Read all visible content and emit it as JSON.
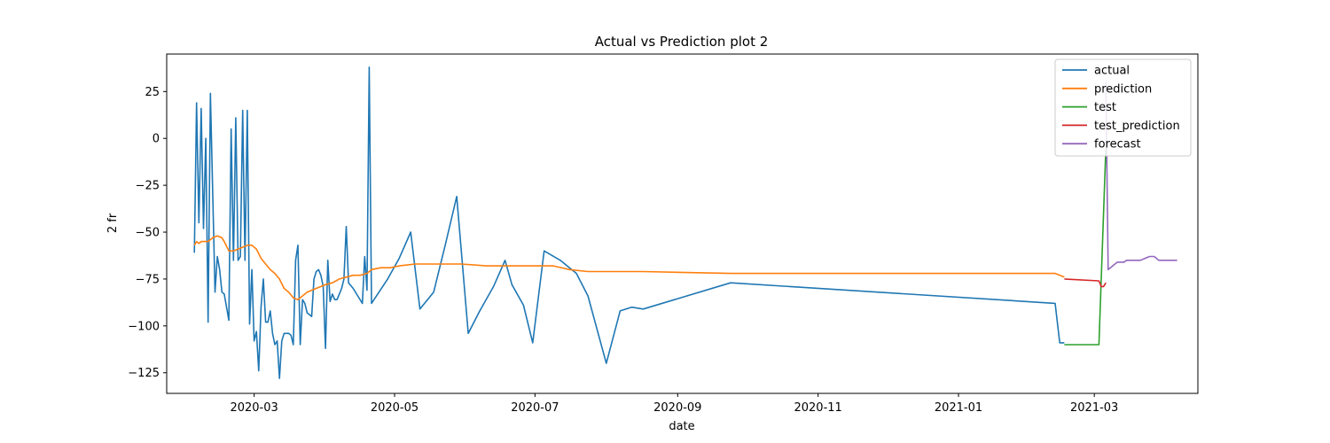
{
  "chart_data": {
    "type": "line",
    "title": "Actual vs Prediction plot 2",
    "xlabel": "date",
    "ylabel": "2 fr",
    "x_range": [
      "2020-01-23",
      "2021-04-15"
    ],
    "ylim": [
      -136,
      45
    ],
    "x_ticks": [
      {
        "date": "2020-03-01",
        "label": "2020-03"
      },
      {
        "date": "2020-05-01",
        "label": "2020-05"
      },
      {
        "date": "2020-07-01",
        "label": "2020-07"
      },
      {
        "date": "2020-09-01",
        "label": "2020-09"
      },
      {
        "date": "2020-11-01",
        "label": "2020-11"
      },
      {
        "date": "2021-01-01",
        "label": "2021-01"
      },
      {
        "date": "2021-03-01",
        "label": "2021-03"
      }
    ],
    "y_ticks": [
      25,
      0,
      -25,
      -50,
      -75,
      -100,
      -125
    ],
    "grid": false,
    "legend_position": "upper right",
    "series": [
      {
        "name": "actual",
        "color": "#1f77b4",
        "points": [
          [
            "2020-02-04",
            -61
          ],
          [
            "2020-02-05",
            19
          ],
          [
            "2020-02-06",
            -45
          ],
          [
            "2020-02-07",
            16
          ],
          [
            "2020-02-08",
            -48
          ],
          [
            "2020-02-09",
            0
          ],
          [
            "2020-02-10",
            -98
          ],
          [
            "2020-02-11",
            24
          ],
          [
            "2020-02-13",
            -82
          ],
          [
            "2020-02-14",
            -63
          ],
          [
            "2020-02-15",
            -70
          ],
          [
            "2020-02-16",
            -82
          ],
          [
            "2020-02-17",
            -83
          ],
          [
            "2020-02-19",
            -97
          ],
          [
            "2020-02-20",
            5
          ],
          [
            "2020-02-21",
            -65
          ],
          [
            "2020-02-22",
            11
          ],
          [
            "2020-02-23",
            -65
          ],
          [
            "2020-02-24",
            -63
          ],
          [
            "2020-02-25",
            15
          ],
          [
            "2020-02-26",
            -65
          ],
          [
            "2020-02-27",
            15
          ],
          [
            "2020-02-28",
            -99
          ],
          [
            "2020-02-29",
            -70
          ],
          [
            "2020-03-01",
            -108
          ],
          [
            "2020-03-02",
            -103
          ],
          [
            "2020-03-03",
            -124
          ],
          [
            "2020-03-04",
            -90
          ],
          [
            "2020-03-05",
            -75
          ],
          [
            "2020-03-06",
            -98
          ],
          [
            "2020-03-07",
            -98
          ],
          [
            "2020-03-08",
            -92
          ],
          [
            "2020-03-09",
            -104
          ],
          [
            "2020-03-10",
            -110
          ],
          [
            "2020-03-11",
            -108
          ],
          [
            "2020-03-12",
            -128
          ],
          [
            "2020-03-13",
            -108
          ],
          [
            "2020-03-14",
            -104
          ],
          [
            "2020-03-16",
            -104
          ],
          [
            "2020-03-17",
            -105
          ],
          [
            "2020-03-18",
            -110
          ],
          [
            "2020-03-19",
            -65
          ],
          [
            "2020-03-20",
            -57
          ],
          [
            "2020-03-21",
            -110
          ],
          [
            "2020-03-22",
            -86
          ],
          [
            "2020-03-23",
            -88
          ],
          [
            "2020-03-24",
            -93
          ],
          [
            "2020-03-26",
            -95
          ],
          [
            "2020-03-27",
            -75
          ],
          [
            "2020-03-28",
            -71
          ],
          [
            "2020-03-29",
            -70
          ],
          [
            "2020-03-30",
            -73
          ],
          [
            "2020-03-31",
            -79
          ],
          [
            "2020-04-01",
            -112
          ],
          [
            "2020-04-02",
            -65
          ],
          [
            "2020-04-03",
            -87
          ],
          [
            "2020-04-04",
            -83
          ],
          [
            "2020-04-05",
            -86
          ],
          [
            "2020-04-06",
            -86
          ],
          [
            "2020-04-07",
            -83
          ],
          [
            "2020-04-08",
            -80
          ],
          [
            "2020-04-09",
            -75
          ],
          [
            "2020-04-10",
            -47
          ],
          [
            "2020-04-11",
            -77
          ],
          [
            "2020-04-13",
            -80
          ],
          [
            "2020-04-15",
            -84
          ],
          [
            "2020-04-17",
            -88
          ],
          [
            "2020-04-18",
            -63
          ],
          [
            "2020-04-19",
            -81
          ],
          [
            "2020-04-20",
            38
          ],
          [
            "2020-04-21",
            -88
          ],
          [
            "2020-04-28",
            -75
          ],
          [
            "2020-05-03",
            -64
          ],
          [
            "2020-05-08",
            -50
          ],
          [
            "2020-05-12",
            -91
          ],
          [
            "2020-05-18",
            -82
          ],
          [
            "2020-05-23",
            -57
          ],
          [
            "2020-05-28",
            -31
          ],
          [
            "2020-06-02",
            -104
          ],
          [
            "2020-06-07",
            -92
          ],
          [
            "2020-06-13",
            -79
          ],
          [
            "2020-06-18",
            -65
          ],
          [
            "2020-06-21",
            -78
          ],
          [
            "2020-06-26",
            -89
          ],
          [
            "2020-06-30",
            -109
          ],
          [
            "2020-07-05",
            -60
          ],
          [
            "2020-07-12",
            -65
          ],
          [
            "2020-07-19",
            -72
          ],
          [
            "2020-07-24",
            -84
          ],
          [
            "2020-08-01",
            -120
          ],
          [
            "2020-08-07",
            -92
          ],
          [
            "2020-08-12",
            -90
          ],
          [
            "2020-08-17",
            -91
          ],
          [
            "2020-09-24",
            -77
          ],
          [
            "2021-02-12",
            -88
          ],
          [
            "2021-02-14",
            -109
          ],
          [
            "2021-02-16",
            -109
          ]
        ]
      },
      {
        "name": "prediction",
        "color": "#ff7f0e",
        "points": [
          [
            "2020-02-04",
            -57
          ],
          [
            "2020-02-05",
            -55
          ],
          [
            "2020-02-06",
            -56
          ],
          [
            "2020-02-07",
            -55
          ],
          [
            "2020-02-08",
            -55
          ],
          [
            "2020-02-10",
            -55
          ],
          [
            "2020-02-12",
            -53
          ],
          [
            "2020-02-14",
            -52
          ],
          [
            "2020-02-16",
            -53
          ],
          [
            "2020-02-17",
            -55
          ],
          [
            "2020-02-19",
            -60
          ],
          [
            "2020-02-21",
            -60
          ],
          [
            "2020-02-23",
            -59
          ],
          [
            "2020-02-25",
            -58
          ],
          [
            "2020-02-27",
            -57
          ],
          [
            "2020-02-29",
            -57
          ],
          [
            "2020-03-02",
            -59
          ],
          [
            "2020-03-04",
            -64
          ],
          [
            "2020-03-06",
            -67
          ],
          [
            "2020-03-08",
            -70
          ],
          [
            "2020-03-10",
            -72
          ],
          [
            "2020-03-12",
            -75
          ],
          [
            "2020-03-14",
            -80
          ],
          [
            "2020-03-16",
            -82
          ],
          [
            "2020-03-18",
            -85
          ],
          [
            "2020-03-20",
            -86
          ],
          [
            "2020-03-22",
            -84
          ],
          [
            "2020-03-24",
            -82
          ],
          [
            "2020-03-26",
            -81
          ],
          [
            "2020-03-28",
            -80
          ],
          [
            "2020-03-30",
            -79
          ],
          [
            "2020-04-01",
            -78
          ],
          [
            "2020-04-04",
            -77
          ],
          [
            "2020-04-07",
            -75
          ],
          [
            "2020-04-10",
            -74
          ],
          [
            "2020-04-13",
            -73
          ],
          [
            "2020-04-16",
            -73
          ],
          [
            "2020-04-19",
            -72
          ],
          [
            "2020-04-21",
            -70
          ],
          [
            "2020-04-25",
            -69
          ],
          [
            "2020-04-29",
            -69
          ],
          [
            "2020-05-03",
            -68
          ],
          [
            "2020-05-10",
            -67
          ],
          [
            "2020-05-20",
            -67
          ],
          [
            "2020-05-30",
            -67
          ],
          [
            "2020-06-10",
            -68
          ],
          [
            "2020-06-25",
            -68
          ],
          [
            "2020-07-09",
            -68
          ],
          [
            "2020-07-16",
            -70
          ],
          [
            "2020-07-24",
            -71
          ],
          [
            "2020-08-17",
            -71
          ],
          [
            "2020-09-24",
            -72
          ],
          [
            "2021-02-12",
            -72
          ],
          [
            "2021-02-16",
            -74
          ]
        ]
      },
      {
        "name": "test",
        "color": "#2ca02c",
        "points": [
          [
            "2021-02-16",
            -110
          ],
          [
            "2021-03-03",
            -110
          ],
          [
            "2021-03-06",
            -5
          ]
        ]
      },
      {
        "name": "test_prediction",
        "color": "#d62728",
        "points": [
          [
            "2021-02-16",
            -75
          ],
          [
            "2021-03-03",
            -76
          ],
          [
            "2021-03-04",
            -79
          ],
          [
            "2021-03-05",
            -79
          ],
          [
            "2021-03-06",
            -77
          ]
        ]
      },
      {
        "name": "forecast",
        "color": "#9467bd",
        "points": [
          [
            "2021-03-06",
            30
          ],
          [
            "2021-03-07",
            -70
          ],
          [
            "2021-03-08",
            -69
          ],
          [
            "2021-03-09",
            -68
          ],
          [
            "2021-03-10",
            -67
          ],
          [
            "2021-03-11",
            -66
          ],
          [
            "2021-03-12",
            -66
          ],
          [
            "2021-03-13",
            -66
          ],
          [
            "2021-03-14",
            -66
          ],
          [
            "2021-03-15",
            -65
          ],
          [
            "2021-03-17",
            -65
          ],
          [
            "2021-03-19",
            -65
          ],
          [
            "2021-03-21",
            -65
          ],
          [
            "2021-03-23",
            -64
          ],
          [
            "2021-03-25",
            -63
          ],
          [
            "2021-03-26",
            -63
          ],
          [
            "2021-03-27",
            -63
          ],
          [
            "2021-03-28",
            -64
          ],
          [
            "2021-03-29",
            -65
          ],
          [
            "2021-03-31",
            -65
          ],
          [
            "2021-04-02",
            -65
          ],
          [
            "2021-04-04",
            -65
          ],
          [
            "2021-04-06",
            -65
          ]
        ]
      }
    ]
  }
}
